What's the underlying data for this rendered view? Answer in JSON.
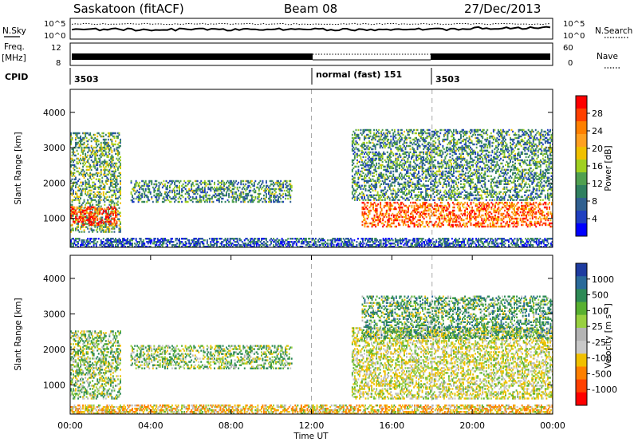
{
  "header": {
    "station": "Saskatoon (fitACF)",
    "beam": "Beam 08",
    "date": "27/Dec/2013"
  },
  "left_labels": {
    "nsky": "N.Sky",
    "freq_line1": "Freq.",
    "freq_line2": "[MHz]",
    "cpid": "CPID"
  },
  "right_labels": {
    "nsearch": "N.Search",
    "nave": "Nave"
  },
  "noise_panel": {
    "left_ticks": [
      "10^5",
      "10^0"
    ],
    "right_ticks": [
      "10^5",
      "10^0"
    ]
  },
  "freq_panel": {
    "left_ticks": [
      "12",
      "8"
    ],
    "right_ticks": [
      "60",
      "0"
    ]
  },
  "cpid_panel": {
    "segments": [
      {
        "label": "3503",
        "start_hour": 0
      },
      {
        "label": "normal (fast) 151",
        "start_hour": 12
      },
      {
        "label": "3503",
        "start_hour": 18
      }
    ]
  },
  "colorbars": {
    "power": {
      "title": "Power [dB]",
      "ticks": [
        "28",
        "24",
        "20",
        "16",
        "12",
        "8",
        "4"
      ],
      "colors": [
        "#ff0000",
        "#ff4000",
        "#ff8000",
        "#ffa020",
        "#f0c000",
        "#a0d020",
        "#50a050",
        "#308060",
        "#306090",
        "#2040c0",
        "#0000ff"
      ]
    },
    "velocity": {
      "title": "Velocity [m s⁻¹]",
      "ticks": [
        "1000",
        "500",
        "100",
        "25",
        "-25",
        "-100",
        "-500",
        "-1000"
      ],
      "colors": [
        "#1e3ca0",
        "#2a6a9a",
        "#2e8a56",
        "#58b030",
        "#98d040",
        "#b4b4b4",
        "#c8c8c8",
        "#f0c000",
        "#ff8000",
        "#ff4000",
        "#ff0000"
      ]
    }
  },
  "chart_data": [
    {
      "type": "heatmap",
      "name": "Power",
      "xlabel": "",
      "ylabel": "Slant Range [km]",
      "xlim": [
        0,
        24
      ],
      "ylim": [
        180,
        4650
      ],
      "yticks": [
        "1000",
        "2000",
        "3000",
        "4000"
      ],
      "xticks": [],
      "clim": [
        0,
        30
      ],
      "cbar_label": "Power [dB]",
      "regions": [
        {
          "time": [
            0.0,
            2.5
          ],
          "range": [
            600,
            3400
          ],
          "value": 12
        },
        {
          "time": [
            0.0,
            2.3
          ],
          "range": [
            800,
            1300
          ],
          "value": 26
        },
        {
          "time": [
            3.0,
            11.0
          ],
          "range": [
            1450,
            2050
          ],
          "value": 10
        },
        {
          "time": [
            14.0,
            24.0
          ],
          "range": [
            1500,
            3500
          ],
          "value": 10
        },
        {
          "time": [
            14.5,
            24.0
          ],
          "range": [
            750,
            1450
          ],
          "value": 24
        },
        {
          "time": [
            0.0,
            24.0
          ],
          "range": [
            180,
            450
          ],
          "value": 6
        }
      ]
    },
    {
      "type": "heatmap",
      "name": "Velocity",
      "xlabel": "Time UT",
      "ylabel": "Slant Range [km]",
      "xlim": [
        0,
        24
      ],
      "ylim": [
        180,
        4650
      ],
      "yticks": [
        "1000",
        "2000",
        "3000",
        "4000"
      ],
      "xticks": [
        "00:00",
        "04:00",
        "08:00",
        "12:00",
        "16:00",
        "20:00",
        "00:00"
      ],
      "clim": [
        -1000,
        1000
      ],
      "cbar_label": "Velocity [m s⁻¹]",
      "regions": [
        {
          "time": [
            0.0,
            2.5
          ],
          "range": [
            600,
            2500
          ],
          "value": 50
        },
        {
          "time": [
            3.0,
            11.0
          ],
          "range": [
            1450,
            2100
          ],
          "value": 60
        },
        {
          "time": [
            14.0,
            24.0
          ],
          "range": [
            600,
            2600
          ],
          "value": 0
        },
        {
          "time": [
            14.5,
            24.0
          ],
          "range": [
            2300,
            3500
          ],
          "value": 150
        },
        {
          "time": [
            0.0,
            24.0
          ],
          "range": [
            180,
            450
          ],
          "value": -60
        }
      ]
    }
  ]
}
